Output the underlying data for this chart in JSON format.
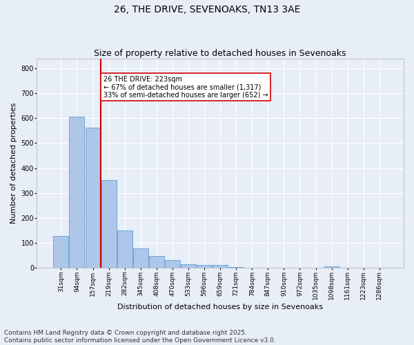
{
  "title": "26, THE DRIVE, SEVENOAKS, TN13 3AE",
  "subtitle": "Size of property relative to detached houses in Sevenoaks",
  "xlabel": "Distribution of detached houses by size in Sevenoaks",
  "ylabel": "Number of detached properties",
  "categories": [
    "31sqm",
    "94sqm",
    "157sqm",
    "219sqm",
    "282sqm",
    "345sqm",
    "408sqm",
    "470sqm",
    "533sqm",
    "596sqm",
    "659sqm",
    "721sqm",
    "784sqm",
    "847sqm",
    "910sqm",
    "972sqm",
    "1035sqm",
    "1098sqm",
    "1161sqm",
    "1223sqm",
    "1286sqm"
  ],
  "values": [
    128,
    607,
    563,
    352,
    150,
    77,
    48,
    30,
    13,
    12,
    12,
    4,
    0,
    0,
    0,
    0,
    0,
    6,
    0,
    0,
    0
  ],
  "bar_color": "#aec6e8",
  "bar_edge_color": "#5a9fd4",
  "vline_color": "#cc0000",
  "vline_index": 3,
  "annotation_text": "26 THE DRIVE: 223sqm\n← 67% of detached houses are smaller (1,317)\n33% of semi-detached houses are larger (652) →",
  "annotation_box_color": "#ffffff",
  "annotation_box_edge_color": "#cc0000",
  "ylim": [
    0,
    840
  ],
  "yticks": [
    0,
    100,
    200,
    300,
    400,
    500,
    600,
    700,
    800
  ],
  "bg_color": "#e8eef8",
  "grid_color": "#ffffff",
  "footer": "Contains HM Land Registry data © Crown copyright and database right 2025.\nContains public sector information licensed under the Open Government Licence v3.0.",
  "title_fontsize": 10,
  "subtitle_fontsize": 9,
  "tick_fontsize": 6.5,
  "label_fontsize": 8,
  "footer_fontsize": 6.5
}
